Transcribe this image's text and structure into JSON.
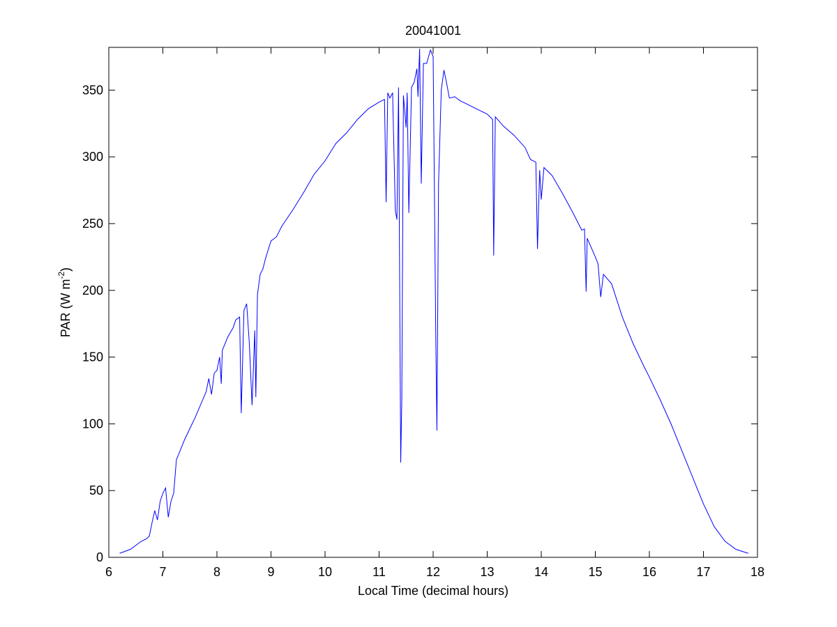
{
  "chart_data": {
    "type": "line",
    "title": "20041001",
    "xlabel": "Local Time (decimal hours)",
    "ylabel_parts": [
      "PAR (W m",
      "-2",
      ")"
    ],
    "xlim": [
      6,
      18
    ],
    "xticks": [
      6,
      7,
      8,
      9,
      10,
      11,
      12,
      13,
      14,
      15,
      16,
      17,
      18
    ],
    "ylim": [
      0,
      382
    ],
    "yticks": [
      0,
      50,
      100,
      150,
      200,
      250,
      300,
      350
    ],
    "series": [
      {
        "color": "#0000ff",
        "x": [
          6.2,
          6.4,
          6.6,
          6.7,
          6.75,
          6.8,
          6.85,
          6.9,
          6.95,
          7.0,
          7.05,
          7.1,
          7.15,
          7.2,
          7.25,
          7.4,
          7.6,
          7.8,
          7.85,
          7.9,
          7.95,
          8.0,
          8.05,
          8.08,
          8.1,
          8.2,
          8.3,
          8.35,
          8.42,
          8.45,
          8.5,
          8.55,
          8.6,
          8.65,
          8.7,
          8.72,
          8.75,
          8.8,
          8.85,
          8.9,
          9.0,
          9.1,
          9.2,
          9.4,
          9.6,
          9.8,
          10.0,
          10.2,
          10.4,
          10.6,
          10.8,
          11.0,
          11.1,
          11.13,
          11.16,
          11.2,
          11.25,
          11.3,
          11.33,
          11.36,
          11.38,
          11.4,
          11.42,
          11.45,
          11.5,
          11.52,
          11.55,
          11.6,
          11.65,
          11.7,
          11.72,
          11.75,
          11.78,
          11.82,
          11.88,
          11.95,
          12.0,
          12.05,
          12.07,
          12.1,
          12.15,
          12.2,
          12.25,
          12.3,
          12.4,
          12.5,
          12.6,
          12.8,
          13.0,
          13.1,
          13.12,
          13.15,
          13.3,
          13.5,
          13.7,
          13.8,
          13.9,
          13.93,
          13.97,
          14.0,
          14.05,
          14.2,
          14.4,
          14.6,
          14.75,
          14.8,
          14.83,
          14.85,
          15.0,
          15.05,
          15.1,
          15.15,
          15.3,
          15.5,
          15.7,
          15.9,
          16.0,
          16.2,
          16.4,
          16.6,
          16.8,
          17.0,
          17.2,
          17.4,
          17.6,
          17.83
        ],
        "values": [
          3,
          6,
          12,
          14,
          16,
          26,
          35,
          28,
          42,
          48,
          52,
          30,
          42,
          48,
          73,
          88,
          105,
          124,
          134,
          122,
          138,
          140,
          150,
          130,
          155,
          165,
          172,
          178,
          180,
          108,
          185,
          190,
          160,
          114,
          170,
          120,
          197,
          212,
          216,
          224,
          237,
          240,
          248,
          260,
          273,
          287,
          297,
          310,
          318,
          328,
          336,
          341,
          343,
          266,
          348,
          344,
          348,
          260,
          253,
          352,
          212,
          71,
          118,
          346,
          322,
          348,
          258,
          352,
          356,
          366,
          345,
          381,
          280,
          370,
          370,
          380,
          375,
          160,
          95,
          280,
          350,
          365,
          355,
          344,
          345,
          342,
          340,
          336,
          332,
          328,
          226,
          330,
          323,
          316,
          307,
          298,
          296,
          231,
          290,
          268,
          292,
          286,
          272,
          257,
          245,
          246,
          199,
          239,
          225,
          220,
          195,
          212,
          205,
          180,
          160,
          143,
          135,
          118,
          100,
          80,
          60,
          40,
          23,
          12,
          6,
          3
        ]
      }
    ]
  }
}
